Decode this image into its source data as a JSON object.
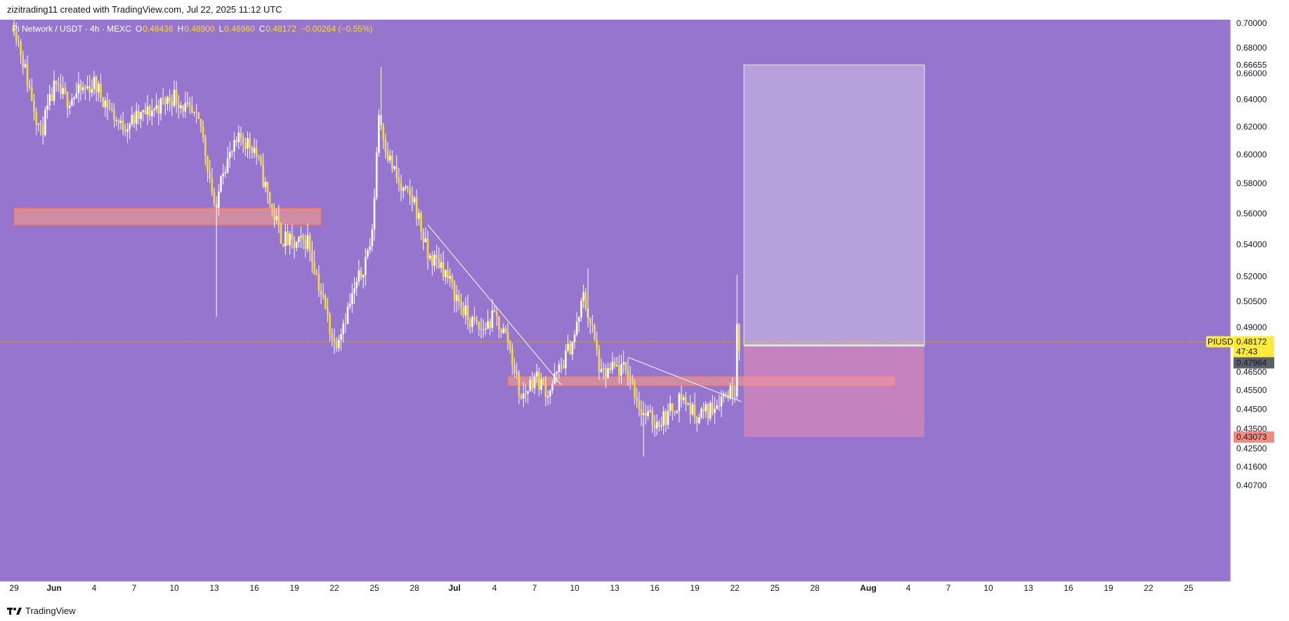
{
  "header": {
    "attribution": "zizitrading11 created with TradingView.com, Jul 22, 2025 11:12 UTC"
  },
  "footer": {
    "brand": "TradingView"
  },
  "colors": {
    "background": "#9575cd",
    "candle": "#fdd835",
    "wick": "#ffffff",
    "zone_fill": "#ff9e80",
    "profit_fill": "#d1c4e9",
    "loss_fill": "#f48fb1",
    "price_tag": "#ffeb3b",
    "stop_tag": "#f28b82",
    "accent": "#fdd835"
  },
  "legend": {
    "symbol": "Pi Network / USDT · 4h · MEXC",
    "open_label": "O",
    "open": "0.48436",
    "high_label": "H",
    "high": "0.48900",
    "low_label": "L",
    "low": "0.46960",
    "close_label": "C",
    "close": "0.48172",
    "change": "−0.00264 (−0.55%)"
  },
  "chart_data": {
    "type": "candlestick",
    "symbol": "PIUSDT",
    "timeframe": "4h",
    "y_axis": {
      "scale": "log",
      "range": [
        0.4,
        0.705
      ],
      "ticks": [
        "0.70000",
        "0.68000",
        "0.66000",
        "0.64000",
        "0.62000",
        "0.60000",
        "0.58000",
        "0.56000",
        "0.54000",
        "0.52000",
        "0.50500",
        "0.49000",
        "0.46500",
        "0.45500",
        "0.44500",
        "0.43500",
        "0.42500",
        "0.41600",
        "0.40700"
      ]
    },
    "x_axis": {
      "ticks": [
        "29",
        "Jun",
        "4",
        "7",
        "10",
        "13",
        "16",
        "19",
        "22",
        "25",
        "28",
        "Jul",
        "4",
        "7",
        "10",
        "13",
        "16",
        "19",
        "22",
        "25",
        "28",
        "Aug",
        "4",
        "7",
        "10",
        "13",
        "16",
        "19",
        "22",
        "25"
      ]
    },
    "series_path": [
      [
        "May 29 00:00",
        0.7
      ],
      [
        "May 30 00:00",
        0.655
      ],
      [
        "May 31 00:00",
        0.615
      ],
      [
        "Jun 1 00:00",
        0.648
      ],
      [
        "Jun 2 00:00",
        0.64
      ],
      [
        "Jun 4 00:00",
        0.652
      ],
      [
        "Jun 6 00:00",
        0.62
      ],
      [
        "Jun 7 00:00",
        0.625
      ],
      [
        "Jun 8 00:00",
        0.63
      ],
      [
        "Jun 10 00:00",
        0.643
      ],
      [
        "Jun 12 00:00",
        0.62
      ],
      [
        "Jun 13 04:00",
        0.558
      ],
      [
        "Jun 13 12:00",
        0.59
      ],
      [
        "Jun 14 00:00",
        0.596
      ],
      [
        "Jun 15 00:00",
        0.612
      ],
      [
        "Jun 16 00:00",
        0.605
      ],
      [
        "Jun 17 00:00",
        0.572
      ],
      [
        "Jun 18 00:00",
        0.545
      ],
      [
        "Jun 19 00:00",
        0.539
      ],
      [
        "Jun 20 00:00",
        0.543
      ],
      [
        "Jun 21 00:00",
        0.51
      ],
      [
        "Jun 22 00:00",
        0.48
      ],
      [
        "Jun 23 00:00",
        0.5
      ],
      [
        "Jun 24 00:00",
        0.522
      ],
      [
        "Jun 24 20:00",
        0.545
      ],
      [
        "Jun 25 08:00",
        0.63
      ],
      [
        "Jun 26 00:00",
        0.6
      ],
      [
        "Jun 27 00:00",
        0.575
      ],
      [
        "Jun 28 00:00",
        0.568
      ],
      [
        "Jun 29 00:00",
        0.532
      ],
      [
        "Jun 30 00:00",
        0.528
      ],
      [
        "Jul 1 00:00",
        0.51
      ],
      [
        "Jul 2 00:00",
        0.495
      ],
      [
        "Jul 3 00:00",
        0.488
      ],
      [
        "Jul 4 00:00",
        0.496
      ],
      [
        "Jul 5 00:00",
        0.483
      ],
      [
        "Jul 6 00:00",
        0.45
      ],
      [
        "Jul 7 00:00",
        0.463
      ],
      [
        "Jul 8 00:00",
        0.454
      ],
      [
        "Jul 9 00:00",
        0.468
      ],
      [
        "Jul 10 00:00",
        0.485
      ],
      [
        "Jul 10 16:00",
        0.508
      ],
      [
        "Jul 11 08:00",
        0.488
      ],
      [
        "Jul 12 00:00",
        0.462
      ],
      [
        "Jul 13 00:00",
        0.467
      ],
      [
        "Jul 14 00:00",
        0.465
      ],
      [
        "Jul 15 00:00",
        0.444
      ],
      [
        "Jul 16 00:00",
        0.438
      ],
      [
        "Jul 17 00:00",
        0.442
      ],
      [
        "Jul 18 00:00",
        0.452
      ],
      [
        "Jul 19 00:00",
        0.442
      ],
      [
        "Jul 20 00:00",
        0.444
      ],
      [
        "Jul 21 00:00",
        0.452
      ],
      [
        "Jul 22 00:00",
        0.456
      ],
      [
        "Jul 22 04:00",
        0.495
      ],
      [
        "Jul 22 08:00",
        0.48172
      ]
    ],
    "supply_zones": [
      {
        "name": "zone-upper",
        "from": "May 29",
        "to": "Jun 21",
        "top": 0.5635,
        "bottom": 0.5525
      },
      {
        "name": "zone-lower",
        "from": "Jul 5",
        "to": "Aug 3",
        "top": 0.4625,
        "bottom": 0.4575
      }
    ],
    "trendlines": [
      {
        "from": [
          "Jun 29 00:00",
          0.5525
        ],
        "to": [
          "Jul 9 00:00",
          0.458
        ]
      },
      {
        "from": [
          "Jul 14 00:00",
          0.473
        ],
        "to": [
          "Jul 22 12:00",
          0.449
        ]
      }
    ],
    "position": {
      "side": "long",
      "from": "Jul 22",
      "to": "Aug 5",
      "target": 0.66655,
      "entry": 0.47964,
      "stop": 0.43073
    },
    "price_labels": {
      "symbol_tag": "PIUSDT",
      "last_price": "0.48172",
      "countdown": "47:43",
      "entry": "0.47964",
      "target": "0.66655",
      "stop": "0.43073"
    }
  }
}
